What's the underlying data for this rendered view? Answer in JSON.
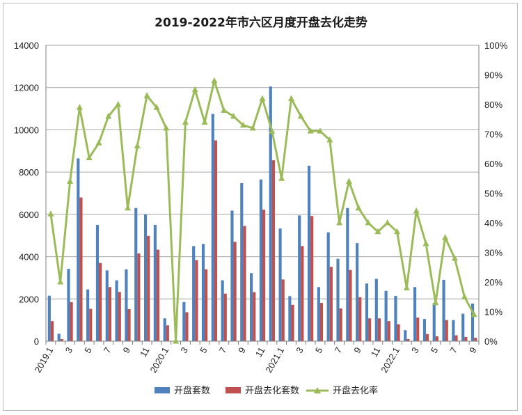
{
  "chart_data": {
    "type": "bar",
    "title": "2019-2022年市六区月度开盘去化走势",
    "xlabel": "",
    "ylabel": "",
    "ylim": [
      0,
      14000
    ],
    "y2lim": [
      0,
      100
    ],
    "y_ticks": [
      "0",
      "2000",
      "4000",
      "6000",
      "8000",
      "10000",
      "12000",
      "14000"
    ],
    "y2_ticks": [
      "0%",
      "10%",
      "20%",
      "30%",
      "40%",
      "50%",
      "60%",
      "70%",
      "80%",
      "90%",
      "100%"
    ],
    "x_tick_labels": [
      {
        "index": 0,
        "label": "2019.1"
      },
      {
        "index": 2,
        "label": "3"
      },
      {
        "index": 4,
        "label": "5"
      },
      {
        "index": 6,
        "label": "7"
      },
      {
        "index": 8,
        "label": "9"
      },
      {
        "index": 10,
        "label": "11"
      },
      {
        "index": 12,
        "label": "2020.1"
      },
      {
        "index": 14,
        "label": "3"
      },
      {
        "index": 16,
        "label": "5"
      },
      {
        "index": 18,
        "label": "7"
      },
      {
        "index": 20,
        "label": "9"
      },
      {
        "index": 22,
        "label": "11"
      },
      {
        "index": 24,
        "label": "2021.1"
      },
      {
        "index": 26,
        "label": "3"
      },
      {
        "index": 28,
        "label": "5"
      },
      {
        "index": 30,
        "label": "7"
      },
      {
        "index": 32,
        "label": "9"
      },
      {
        "index": 34,
        "label": "11"
      },
      {
        "index": 36,
        "label": "2022.1"
      },
      {
        "index": 38,
        "label": "3"
      },
      {
        "index": 40,
        "label": "5"
      },
      {
        "index": 42,
        "label": "7"
      },
      {
        "index": 44,
        "label": "9"
      }
    ],
    "categories": [
      "2019.1",
      "2019.2",
      "2019.3",
      "2019.4",
      "2019.5",
      "2019.6",
      "2019.7",
      "2019.8",
      "2019.9",
      "2019.10",
      "2019.11",
      "2019.12",
      "2020.1",
      "2020.2",
      "2020.3",
      "2020.4",
      "2020.5",
      "2020.6",
      "2020.7",
      "2020.8",
      "2020.9",
      "2020.10",
      "2020.11",
      "2020.12",
      "2021.1",
      "2021.2",
      "2021.3",
      "2021.4",
      "2021.5",
      "2021.6",
      "2021.7",
      "2021.8",
      "2021.9",
      "2021.10",
      "2021.11",
      "2021.12",
      "2022.1",
      "2022.2",
      "2022.3",
      "2022.4",
      "2022.5",
      "2022.6",
      "2022.7",
      "2022.8",
      "2022.9"
    ],
    "series": [
      {
        "name": "开盘套数",
        "kind": "bar",
        "color": "#4f81bd",
        "values": [
          2150,
          350,
          3420,
          8650,
          2450,
          5500,
          3350,
          2880,
          3400,
          6300,
          6000,
          5500,
          1080,
          0,
          1850,
          4500,
          4600,
          10750,
          2880,
          6180,
          7480,
          3220,
          7650,
          12050,
          5330,
          2130,
          5950,
          8300,
          2560,
          5150,
          3900,
          6300,
          4640,
          2730,
          2950,
          2380,
          2140,
          520,
          2560,
          1050,
          1800,
          2900,
          1000,
          1300,
          1780
        ]
      },
      {
        "name": "开盘去化套数",
        "kind": "bar",
        "color": "#c0504d",
        "values": [
          950,
          100,
          1850,
          6800,
          1530,
          3700,
          2560,
          2330,
          1520,
          4150,
          4980,
          4330,
          750,
          0,
          1370,
          3840,
          3400,
          9500,
          2250,
          4700,
          5450,
          2320,
          6220,
          8560,
          2920,
          1720,
          4500,
          5920,
          1810,
          3520,
          1550,
          3370,
          2080,
          1080,
          1080,
          950,
          800,
          100,
          1120,
          340,
          230,
          1000,
          280,
          200,
          160
        ]
      },
      {
        "name": "开盘去化率",
        "kind": "line",
        "axis": "right",
        "color": "#9bbb59",
        "values": [
          43,
          20,
          54,
          79,
          62,
          67,
          76,
          80,
          45,
          66,
          83,
          79,
          72,
          0,
          74,
          85,
          74,
          88,
          78,
          76,
          73,
          72,
          82,
          71,
          55,
          82,
          76,
          71,
          71,
          68,
          40,
          54,
          45,
          40,
          37,
          40,
          37,
          18,
          44,
          33,
          13,
          35,
          28,
          15,
          9
        ]
      }
    ],
    "legend": {
      "placement": "bottom"
    },
    "grid": true
  }
}
